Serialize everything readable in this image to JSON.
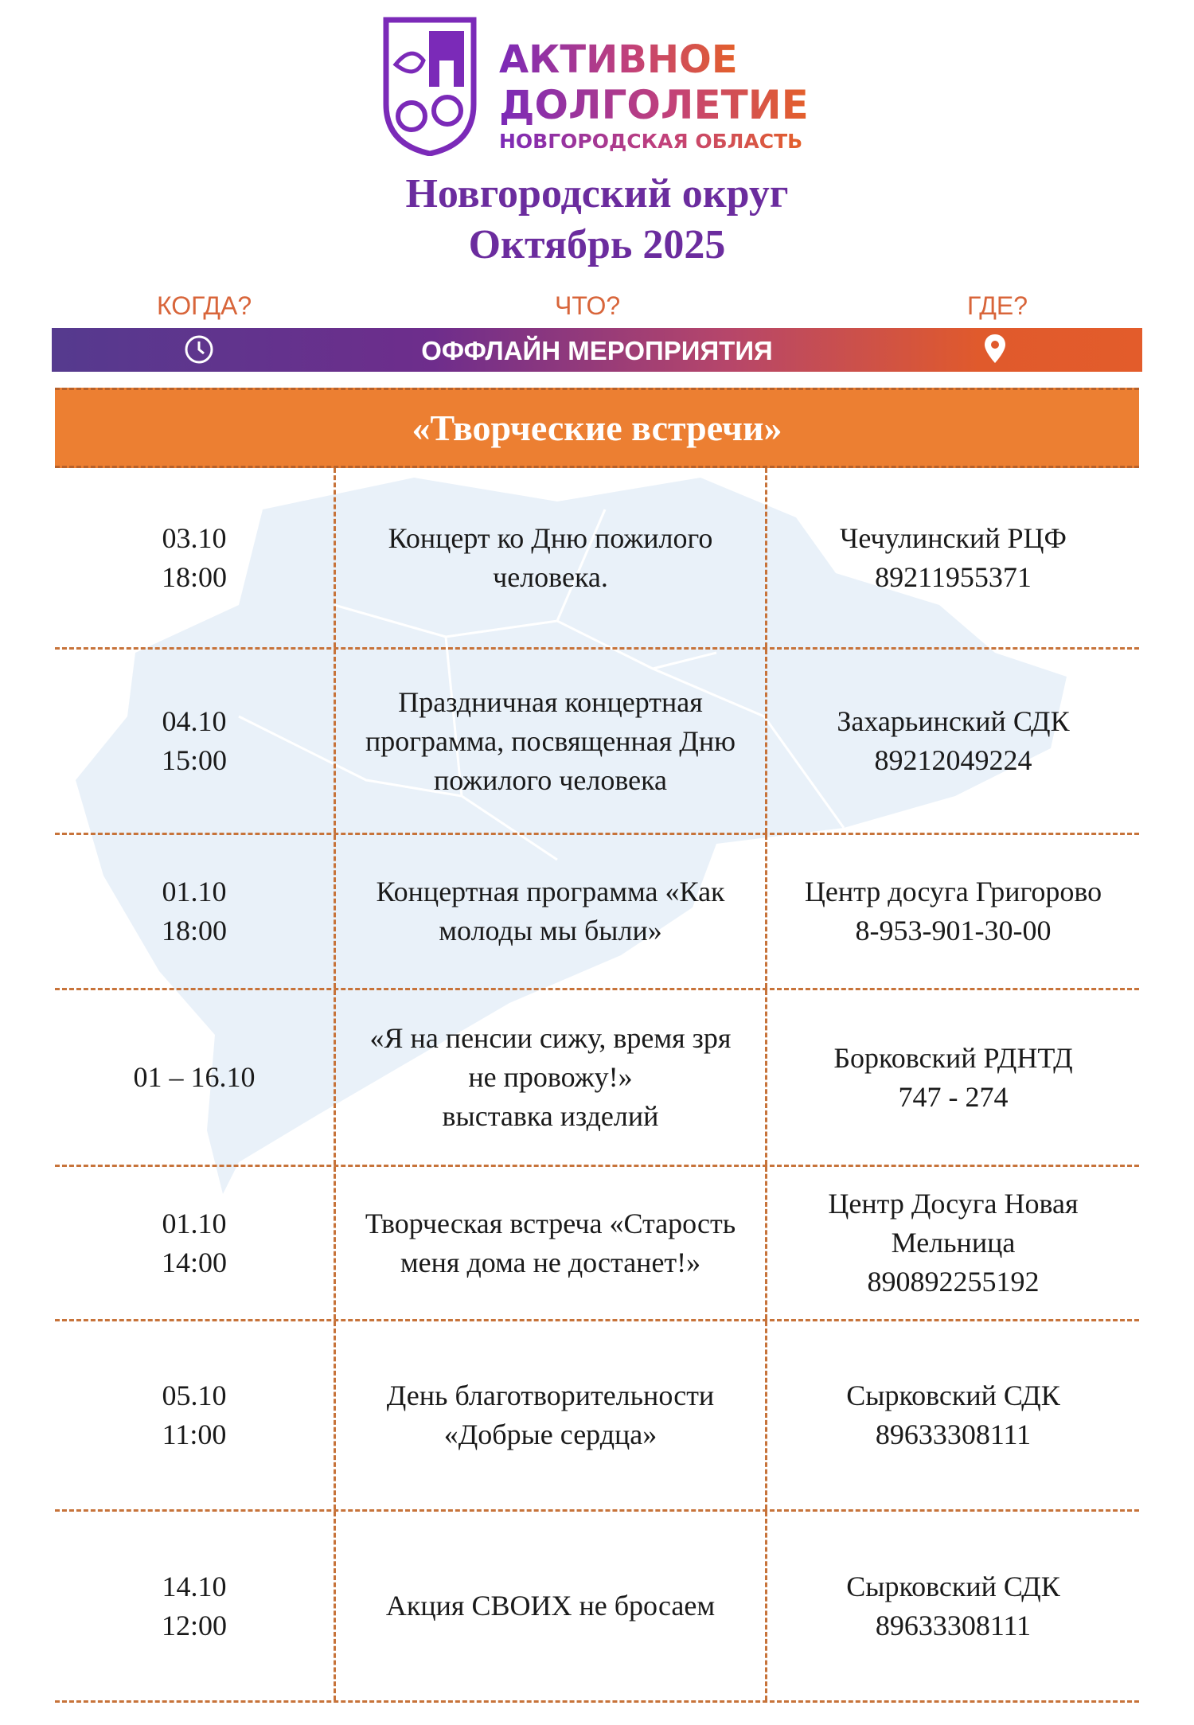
{
  "logo": {
    "line1": "АКТИВНОЕ",
    "line2": "ДОЛГОЛЕТИЕ",
    "line3": "НОВГОРОДСКАЯ ОБЛАСТЬ"
  },
  "title": {
    "line1": "Новгородский округ",
    "line2": "Октябрь 2025"
  },
  "columns": {
    "when": "КОГДА?",
    "what": "ЧТО?",
    "where": "ГДЕ?"
  },
  "banner": {
    "label": "ОФФЛАЙН МЕРОПРИЯТИЯ",
    "left_icon": "clock-icon",
    "right_icon": "map-pin-icon"
  },
  "section": {
    "title": "«Творческие встречи»"
  },
  "colors": {
    "purple": "#6b2c9e",
    "orange": "#ec7f32",
    "dash": "#c7733a"
  },
  "events": [
    {
      "when": "03.10\n18:00",
      "what": "Концерт ко Дню пожилого\nчеловека.",
      "where": "Чечулинский РЦФ\n89211955371"
    },
    {
      "when": "04.10\n15:00",
      "what": "Праздничная концертная\nпрограмма, посвященная Дню\nпожилого человека",
      "where": "Захарьинский СДК\n89212049224"
    },
    {
      "when": "01.10\n18:00",
      "what": "Концертная программа «Как\nмолоды мы были»",
      "where": "Центр досуга Григорово\n8-953-901-30-00"
    },
    {
      "when": "01 – 16.10",
      "what": "«Я на пенсии сижу, время зря\nне провожу!»\nвыставка изделий",
      "where": "Борковский РДНТД\n747 - 274"
    },
    {
      "when": "01.10\n14:00",
      "what": "Творческая встреча «Старость\nменя дома не достанет!»",
      "where": "Центр Досуга Новая\nМельница\n890892255192"
    },
    {
      "when": "05.10\n11:00",
      "what": "День благотворительности\n«Добрые сердца»",
      "where": "Сырковский СДК\n89633308111"
    },
    {
      "when": "14.10\n12:00",
      "what": "Акция СВОИХ не бросаем",
      "where": "Сырковский СДК\n89633308111"
    }
  ]
}
